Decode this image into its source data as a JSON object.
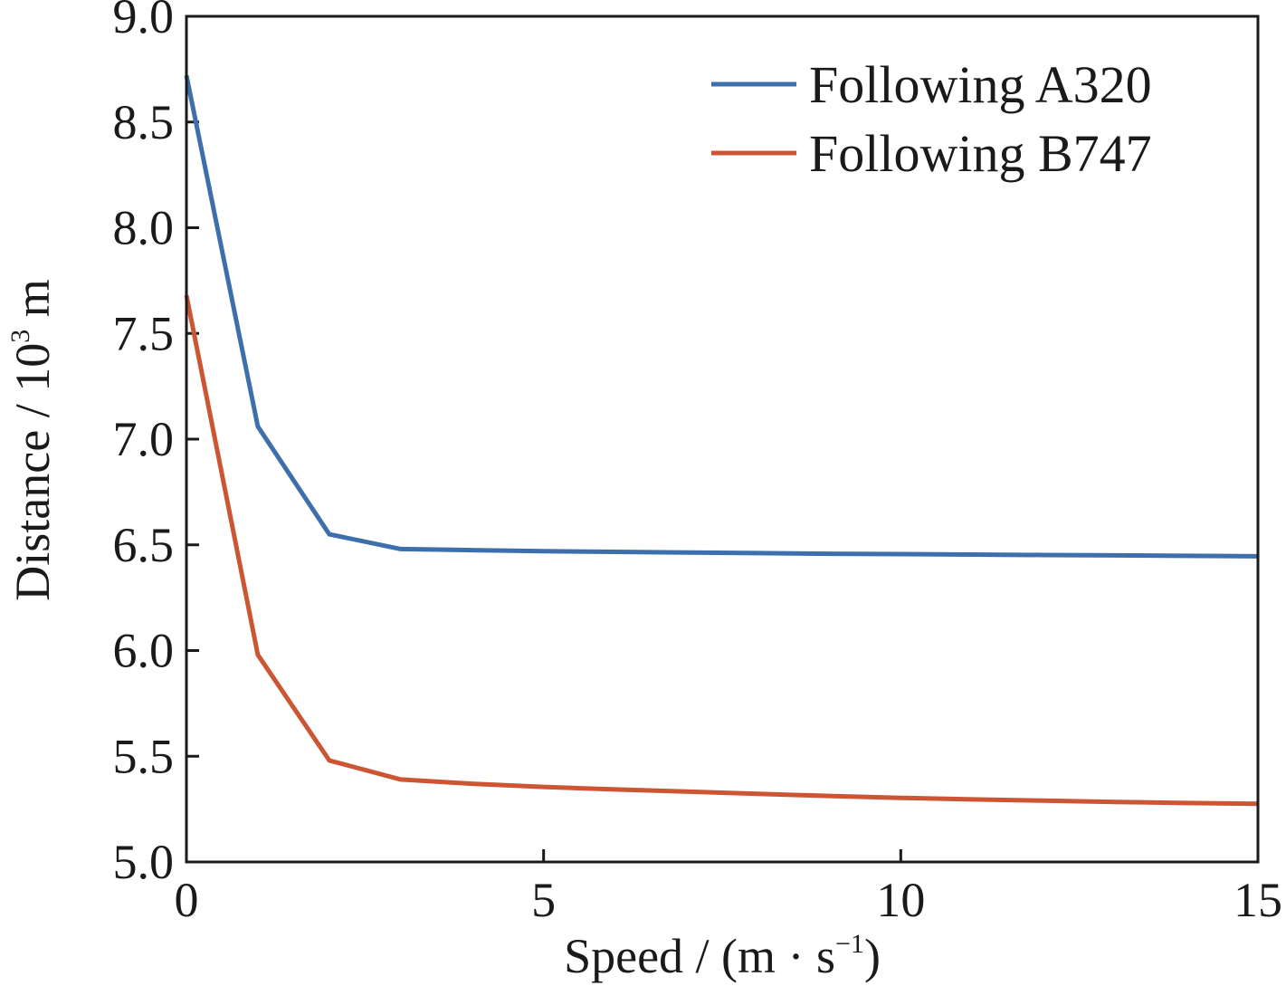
{
  "chart_data": {
    "type": "line",
    "title": "",
    "xlabel": {
      "prefix": "Speed / (m · s",
      "sup": "−1",
      "suffix": ")"
    },
    "ylabel": {
      "prefix": "Distance / 10",
      "sup": "3",
      "suffix": " m"
    },
    "xlim": [
      0,
      15
    ],
    "ylim": [
      5.0,
      9.0
    ],
    "xticks": [
      0,
      5,
      10,
      15
    ],
    "xtick_labels": [
      "0",
      "5",
      "10",
      "15"
    ],
    "yticks": [
      5.0,
      5.5,
      6.0,
      6.5,
      7.0,
      7.5,
      8.0,
      8.5,
      9.0
    ],
    "ytick_labels": [
      "5.0",
      "5.5",
      "6.0",
      "6.5",
      "7.0",
      "7.5",
      "8.0",
      "8.5",
      "9.0"
    ],
    "grid": false,
    "legend_position": "top-right",
    "x": [
      0,
      1,
      2,
      3,
      4,
      5,
      6,
      7,
      8,
      9,
      10,
      11,
      12,
      13,
      14,
      15
    ],
    "series": [
      {
        "name": "Following A320",
        "color": "#3d6fad",
        "values": [
          8.72,
          7.06,
          6.55,
          6.48,
          6.475,
          6.47,
          6.467,
          6.464,
          6.461,
          6.458,
          6.456,
          6.454,
          6.452,
          6.45,
          6.448,
          6.446
        ]
      },
      {
        "name": "Following B747",
        "color": "#cc5533",
        "values": [
          7.68,
          5.98,
          5.48,
          5.39,
          5.37,
          5.355,
          5.343,
          5.333,
          5.322,
          5.312,
          5.303,
          5.296,
          5.29,
          5.284,
          5.279,
          5.275
        ]
      }
    ]
  }
}
